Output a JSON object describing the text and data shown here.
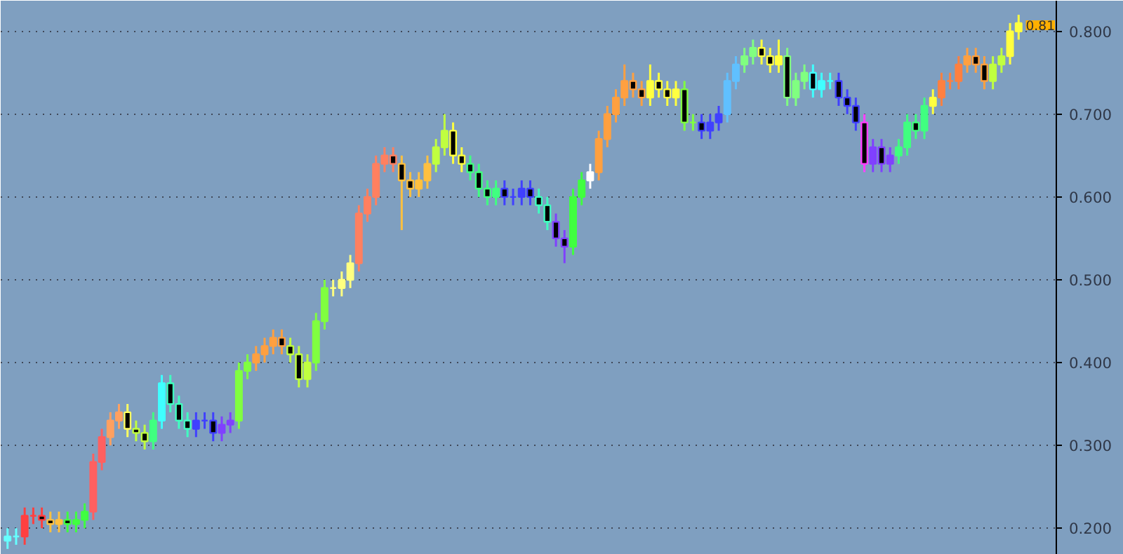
{
  "chart_data": {
    "type": "candlestick",
    "categories": [
      null,
      null,
      null,
      null,
      null,
      null,
      null,
      null,
      null,
      null,
      null,
      null,
      null,
      null,
      null,
      null,
      null,
      null,
      null,
      null,
      null,
      null,
      null,
      null,
      null,
      null,
      null,
      null,
      null,
      null,
      null,
      null,
      null,
      null,
      null,
      null,
      null,
      null,
      null,
      null,
      null,
      null,
      null,
      null,
      null,
      null,
      null,
      null,
      null,
      null,
      null,
      null,
      null,
      null,
      null,
      null,
      null,
      null,
      null,
      null,
      null,
      null,
      null,
      null,
      null,
      null,
      null,
      null,
      null,
      null,
      null,
      null,
      null,
      null,
      null,
      null,
      null,
      null,
      null,
      null,
      null,
      null,
      null,
      null,
      null,
      null,
      null,
      null,
      null,
      null,
      null,
      null,
      null,
      null,
      null,
      null,
      null,
      null,
      null,
      null,
      null,
      null,
      null,
      null,
      null,
      null,
      null,
      null,
      null,
      null,
      null,
      null,
      null,
      null,
      null,
      null,
      null,
      null,
      null
    ],
    "ohlc": [
      [
        0.185,
        0.2,
        0.175,
        0.19
      ],
      [
        0.19,
        0.2,
        0.18,
        0.19
      ],
      [
        0.19,
        0.225,
        0.18,
        0.215
      ],
      [
        0.215,
        0.225,
        0.205,
        0.215
      ],
      [
        0.215,
        0.225,
        0.2,
        0.21
      ],
      [
        0.21,
        0.22,
        0.195,
        0.205
      ],
      [
        0.205,
        0.22,
        0.195,
        0.21
      ],
      [
        0.21,
        0.22,
        0.195,
        0.205
      ],
      [
        0.205,
        0.22,
        0.195,
        0.21
      ],
      [
        0.21,
        0.23,
        0.2,
        0.22
      ],
      [
        0.22,
        0.29,
        0.21,
        0.28
      ],
      [
        0.28,
        0.32,
        0.27,
        0.31
      ],
      [
        0.31,
        0.34,
        0.3,
        0.33
      ],
      [
        0.33,
        0.35,
        0.32,
        0.34
      ],
      [
        0.34,
        0.35,
        0.31,
        0.32
      ],
      [
        0.32,
        0.33,
        0.305,
        0.315
      ],
      [
        0.315,
        0.325,
        0.295,
        0.305
      ],
      [
        0.305,
        0.34,
        0.295,
        0.33
      ],
      [
        0.33,
        0.385,
        0.32,
        0.375
      ],
      [
        0.375,
        0.385,
        0.34,
        0.35
      ],
      [
        0.35,
        0.36,
        0.32,
        0.33
      ],
      [
        0.33,
        0.34,
        0.31,
        0.32
      ],
      [
        0.32,
        0.34,
        0.31,
        0.33
      ],
      [
        0.33,
        0.34,
        0.32,
        0.33
      ],
      [
        0.33,
        0.34,
        0.305,
        0.315
      ],
      [
        0.315,
        0.335,
        0.305,
        0.325
      ],
      [
        0.325,
        0.34,
        0.315,
        0.33
      ],
      [
        0.33,
        0.4,
        0.32,
        0.39
      ],
      [
        0.39,
        0.41,
        0.38,
        0.4
      ],
      [
        0.4,
        0.42,
        0.39,
        0.41
      ],
      [
        0.41,
        0.43,
        0.4,
        0.42
      ],
      [
        0.42,
        0.44,
        0.41,
        0.43
      ],
      [
        0.43,
        0.44,
        0.41,
        0.42
      ],
      [
        0.42,
        0.43,
        0.4,
        0.41
      ],
      [
        0.41,
        0.42,
        0.37,
        0.38
      ],
      [
        0.38,
        0.41,
        0.37,
        0.4
      ],
      [
        0.4,
        0.46,
        0.39,
        0.45
      ],
      [
        0.45,
        0.5,
        0.44,
        0.49
      ],
      [
        0.49,
        0.5,
        0.48,
        0.49
      ],
      [
        0.49,
        0.51,
        0.48,
        0.5
      ],
      [
        0.5,
        0.53,
        0.49,
        0.52
      ],
      [
        0.52,
        0.59,
        0.51,
        0.58
      ],
      [
        0.58,
        0.61,
        0.57,
        0.6
      ],
      [
        0.6,
        0.65,
        0.59,
        0.64
      ],
      [
        0.64,
        0.66,
        0.63,
        0.65
      ],
      [
        0.65,
        0.66,
        0.63,
        0.64
      ],
      [
        0.64,
        0.65,
        0.56,
        0.62
      ],
      [
        0.62,
        0.63,
        0.6,
        0.61
      ],
      [
        0.61,
        0.63,
        0.6,
        0.62
      ],
      [
        0.62,
        0.65,
        0.61,
        0.64
      ],
      [
        0.64,
        0.67,
        0.63,
        0.66
      ],
      [
        0.66,
        0.7,
        0.65,
        0.68
      ],
      [
        0.68,
        0.69,
        0.64,
        0.65
      ],
      [
        0.65,
        0.66,
        0.63,
        0.64
      ],
      [
        0.64,
        0.65,
        0.62,
        0.63
      ],
      [
        0.63,
        0.64,
        0.6,
        0.61
      ],
      [
        0.61,
        0.62,
        0.59,
        0.6
      ],
      [
        0.6,
        0.62,
        0.59,
        0.61
      ],
      [
        0.61,
        0.62,
        0.59,
        0.6
      ],
      [
        0.6,
        0.61,
        0.59,
        0.6
      ],
      [
        0.6,
        0.62,
        0.59,
        0.61
      ],
      [
        0.61,
        0.62,
        0.59,
        0.6
      ],
      [
        0.6,
        0.61,
        0.58,
        0.59
      ],
      [
        0.59,
        0.6,
        0.56,
        0.57
      ],
      [
        0.57,
        0.58,
        0.54,
        0.55
      ],
      [
        0.55,
        0.56,
        0.52,
        0.54
      ],
      [
        0.54,
        0.61,
        0.53,
        0.6
      ],
      [
        0.6,
        0.63,
        0.59,
        0.62
      ],
      [
        0.62,
        0.64,
        0.61,
        0.63
      ],
      [
        0.63,
        0.68,
        0.62,
        0.67
      ],
      [
        0.67,
        0.71,
        0.66,
        0.7
      ],
      [
        0.7,
        0.73,
        0.69,
        0.72
      ],
      [
        0.72,
        0.76,
        0.71,
        0.74
      ],
      [
        0.74,
        0.75,
        0.72,
        0.73
      ],
      [
        0.73,
        0.74,
        0.71,
        0.72
      ],
      [
        0.72,
        0.76,
        0.71,
        0.74
      ],
      [
        0.74,
        0.75,
        0.72,
        0.73
      ],
      [
        0.73,
        0.74,
        0.71,
        0.72
      ],
      [
        0.72,
        0.74,
        0.71,
        0.73
      ],
      [
        0.73,
        0.74,
        0.68,
        0.69
      ],
      [
        0.69,
        0.7,
        0.68,
        0.69
      ],
      [
        0.69,
        0.7,
        0.67,
        0.68
      ],
      [
        0.68,
        0.7,
        0.67,
        0.69
      ],
      [
        0.69,
        0.71,
        0.68,
        0.7
      ],
      [
        0.7,
        0.75,
        0.69,
        0.74
      ],
      [
        0.74,
        0.77,
        0.73,
        0.76
      ],
      [
        0.76,
        0.78,
        0.75,
        0.77
      ],
      [
        0.77,
        0.79,
        0.76,
        0.78
      ],
      [
        0.78,
        0.79,
        0.76,
        0.77
      ],
      [
        0.77,
        0.78,
        0.75,
        0.76
      ],
      [
        0.76,
        0.79,
        0.75,
        0.77
      ],
      [
        0.77,
        0.78,
        0.71,
        0.72
      ],
      [
        0.72,
        0.75,
        0.71,
        0.74
      ],
      [
        0.74,
        0.76,
        0.73,
        0.75
      ],
      [
        0.75,
        0.76,
        0.72,
        0.73
      ],
      [
        0.73,
        0.75,
        0.72,
        0.74
      ],
      [
        0.74,
        0.75,
        0.73,
        0.74
      ],
      [
        0.74,
        0.75,
        0.71,
        0.72
      ],
      [
        0.72,
        0.73,
        0.7,
        0.71
      ],
      [
        0.71,
        0.72,
        0.68,
        0.69
      ],
      [
        0.69,
        0.7,
        0.63,
        0.64
      ],
      [
        0.64,
        0.67,
        0.63,
        0.66
      ],
      [
        0.66,
        0.67,
        0.63,
        0.64
      ],
      [
        0.64,
        0.66,
        0.63,
        0.65
      ],
      [
        0.65,
        0.67,
        0.64,
        0.66
      ],
      [
        0.66,
        0.7,
        0.65,
        0.69
      ],
      [
        0.69,
        0.7,
        0.67,
        0.68
      ],
      [
        0.68,
        0.72,
        0.67,
        0.71
      ],
      [
        0.71,
        0.73,
        0.7,
        0.72
      ],
      [
        0.72,
        0.75,
        0.71,
        0.74
      ],
      [
        0.74,
        0.75,
        0.73,
        0.74
      ],
      [
        0.74,
        0.77,
        0.73,
        0.76
      ],
      [
        0.76,
        0.78,
        0.75,
        0.77
      ],
      [
        0.77,
        0.78,
        0.75,
        0.76
      ],
      [
        0.76,
        0.77,
        0.73,
        0.74
      ],
      [
        0.74,
        0.77,
        0.73,
        0.76
      ],
      [
        0.76,
        0.78,
        0.75,
        0.77
      ],
      [
        0.77,
        0.81,
        0.76,
        0.8
      ],
      [
        0.8,
        0.82,
        0.79,
        0.81
      ]
    ],
    "colors": [
      "#66ffff",
      "#66ffff",
      "#ff4040",
      "#ff4040",
      "#ff4040",
      "#ffc040",
      "#ffc040",
      "#40ff40",
      "#40ff40",
      "#40ff40",
      "#ff6060",
      "#ff6060",
      "#ffa060",
      "#ffa060",
      "#ffff60",
      "#c0ff40",
      "#c0ff40",
      "#40ff80",
      "#40ffff",
      "#40ffc0",
      "#40ffc0",
      "#40ffc0",
      "#4040ff",
      "#4040ff",
      "#4040ff",
      "#8040ff",
      "#8040ff",
      "#80ff40",
      "#80ff40",
      "#ffa040",
      "#ffa040",
      "#ffa040",
      "#ffa040",
      "#c0ff40",
      "#c0ff40",
      "#c0ff40",
      "#80ff40",
      "#80ff40",
      "#ffff80",
      "#ffff80",
      "#ffff80",
      "#ff8060",
      "#ff8060",
      "#ff8060",
      "#ff8060",
      "#ff8060",
      "#ffc040",
      "#ffc040",
      "#ffc040",
      "#ffc040",
      "#c0ff40",
      "#c0ff40",
      "#ffff40",
      "#ffff40",
      "#40ff80",
      "#40ff80",
      "#40ff80",
      "#40ff80",
      "#4040ff",
      "#4040ff",
      "#4040ff",
      "#4040ff",
      "#40ffc0",
      "#40ffc0",
      "#8040ff",
      "#8040ff",
      "#40ff40",
      "#40ff40",
      "#ffffff",
      "#ffa040",
      "#ffa040",
      "#ffa040",
      "#ffa040",
      "#ffa040",
      "#ffa040",
      "#ffff40",
      "#ffff40",
      "#ffff40",
      "#ffff40",
      "#80ff40",
      "#80ff40",
      "#4040ff",
      "#4040ff",
      "#4040ff",
      "#60c0ff",
      "#60c0ff",
      "#80ff80",
      "#80ff80",
      "#ffff40",
      "#ffff40",
      "#ffff40",
      "#80ff80",
      "#80ff80",
      "#80ff80",
      "#40ffff",
      "#40ffff",
      "#40ffff",
      "#4040ff",
      "#4040ff",
      "#4040ff",
      "#ff40ff",
      "#8040ff",
      "#8040ff",
      "#8040ff",
      "#40ff80",
      "#40ff80",
      "#40ff80",
      "#40ff80",
      "#ffff40",
      "#ff8040",
      "#ff8040",
      "#ff8040",
      "#ffa040",
      "#ffa040",
      "#ffa040",
      "#c0ff40",
      "#c0ff40",
      "#ffff40",
      "#ffff40"
    ],
    "ylim": [
      0.168,
      0.837
    ],
    "yticks": [
      {
        "value": 0.2,
        "label": "0.200"
      },
      {
        "value": 0.3,
        "label": "0.300"
      },
      {
        "value": 0.4,
        "label": "0.400"
      },
      {
        "value": 0.5,
        "label": "0.500"
      },
      {
        "value": 0.6,
        "label": "0.600"
      },
      {
        "value": 0.7,
        "label": "0.700"
      },
      {
        "value": 0.8,
        "label": "0.800"
      }
    ],
    "grid": "y",
    "annotations": [
      {
        "text": "0.81",
        "y": 0.81
      }
    ]
  }
}
